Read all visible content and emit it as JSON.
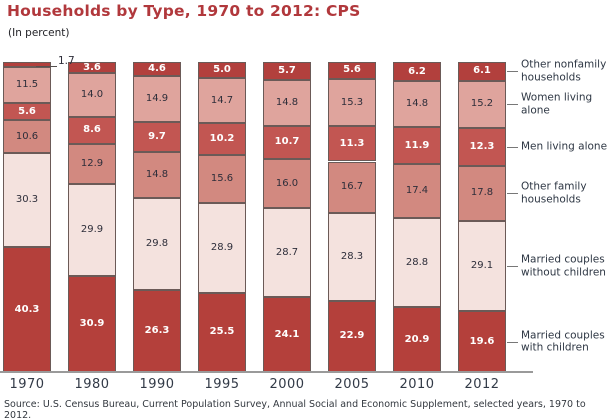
{
  "title": "Households by Type, 1970 to 2012: CPS",
  "subtitle": "(In percent)",
  "source": "Source: U.S. Census Bureau, Current Population Survey, Annual Social and Economic Supplement, selected years, 1970 to 2012.",
  "colors": {
    "title_red": "#b1383c",
    "axis_gray": "#9a9a9a",
    "dark_label_text": "#2e2e3a",
    "light_label_text": "#ffffff"
  },
  "chart_data": {
    "type": "bar",
    "stacked": true,
    "orientation": "vertical",
    "categories": [
      "1970",
      "1980",
      "1990",
      "1995",
      "2000",
      "2005",
      "2010",
      "2012"
    ],
    "series_order": "bottom-to-top",
    "series": [
      {
        "name": "Married couples with children",
        "color": "#b4403b",
        "label_style": "light",
        "values": [
          40.3,
          30.9,
          26.3,
          25.5,
          24.1,
          22.9,
          20.9,
          19.6
        ]
      },
      {
        "name": "Married couples without children",
        "color": "#f4e2de",
        "label_style": "dark",
        "values": [
          30.3,
          29.9,
          29.8,
          28.9,
          28.7,
          28.3,
          28.8,
          29.1
        ]
      },
      {
        "name": "Other family households",
        "color": "#d28980",
        "label_style": "dark",
        "values": [
          10.6,
          12.9,
          14.8,
          15.6,
          16.0,
          16.7,
          17.4,
          17.8
        ]
      },
      {
        "name": "Men living alone",
        "color": "#c25652",
        "label_style": "light",
        "values": [
          5.6,
          8.6,
          9.7,
          10.2,
          10.7,
          11.3,
          11.9,
          12.3
        ]
      },
      {
        "name": "Women living alone",
        "color": "#dfa49d",
        "label_style": "dark",
        "values": [
          11.5,
          14.0,
          14.9,
          14.7,
          14.8,
          15.3,
          14.8,
          15.2
        ]
      },
      {
        "name": "Other nonfamily households",
        "color": "#b2403d",
        "label_style": "light",
        "values": [
          1.7,
          3.6,
          4.6,
          5.0,
          5.7,
          5.6,
          6.2,
          6.1
        ]
      }
    ],
    "ylim": [
      0,
      100
    ],
    "grid": false,
    "legend_position": "right",
    "callout": {
      "category": "1970",
      "series": "Other nonfamily households",
      "text": "1.7"
    }
  }
}
